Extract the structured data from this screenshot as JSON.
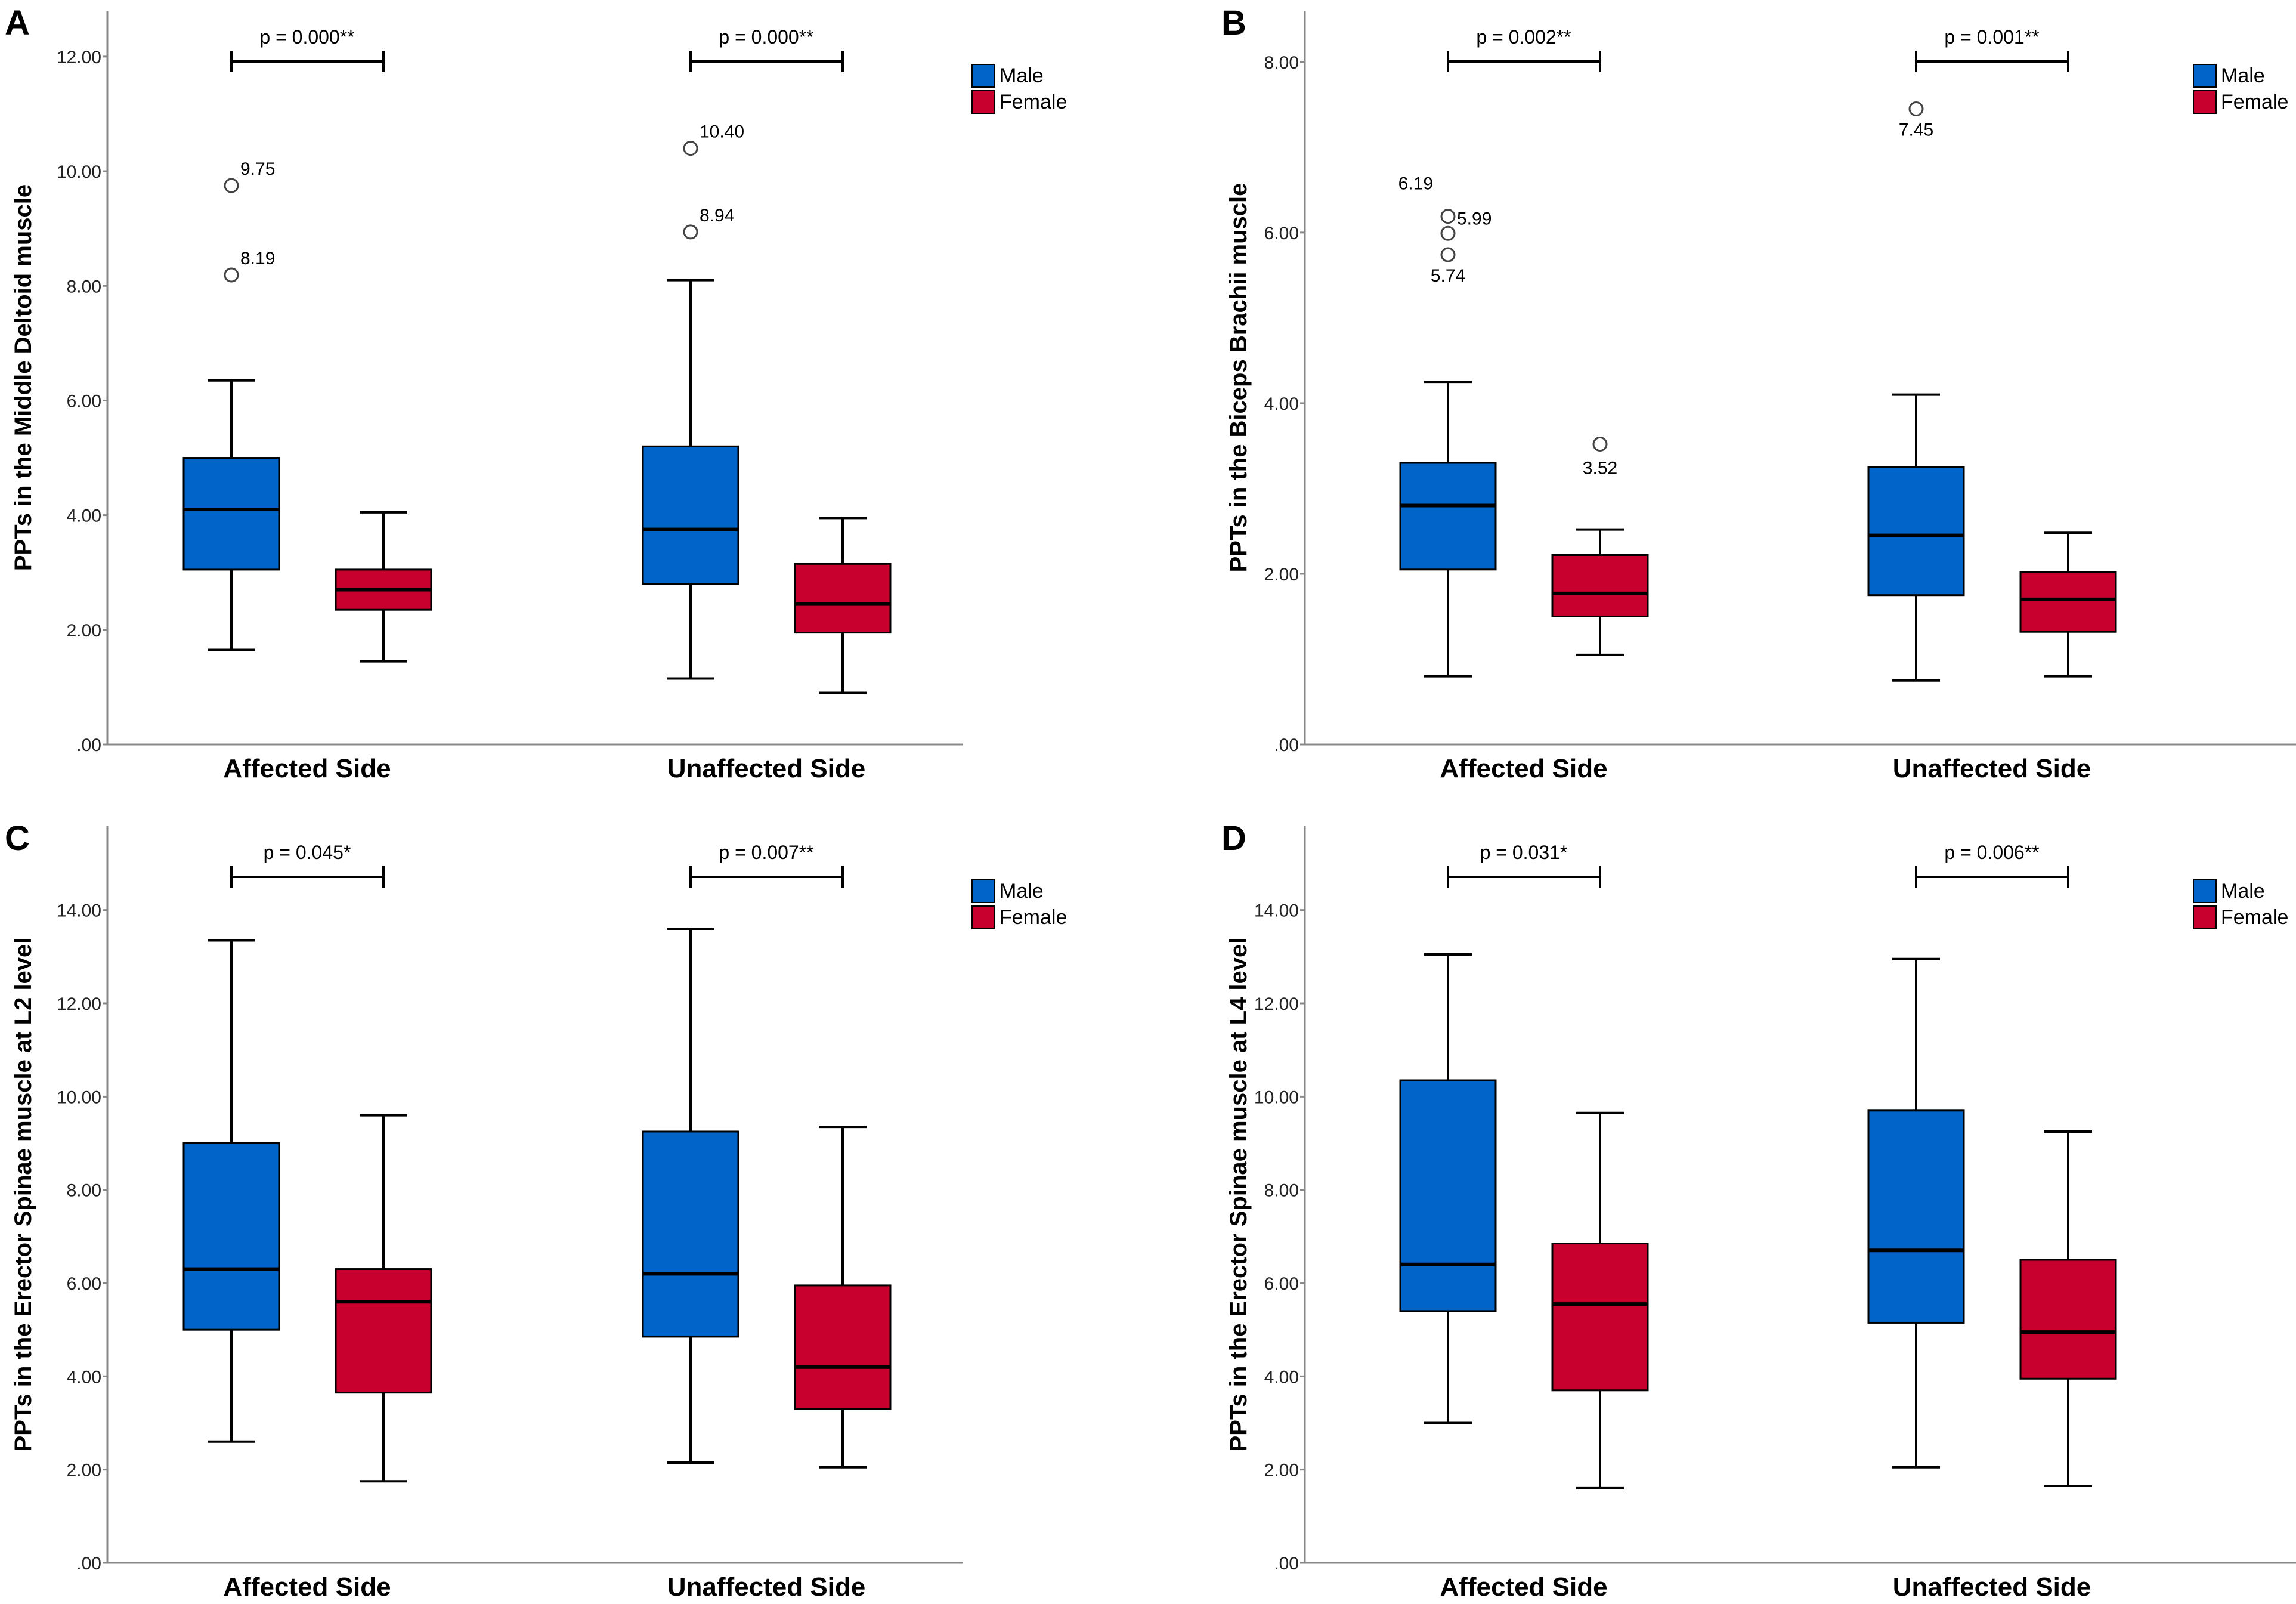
{
  "figure": {
    "legend": {
      "male_label": "Male",
      "female_label": "Female",
      "male_color": "#0064C8",
      "female_color": "#C8002D"
    },
    "group_labels": [
      "Affected Side",
      "Unaffected Side"
    ]
  },
  "chart_data": [
    {
      "type": "boxplot",
      "panel_letter": "A",
      "ylabel": "PPTs in the Middle Deltoid muscle",
      "ylim": [
        0,
        12.8
      ],
      "yticks": [
        0,
        2,
        4,
        6,
        8,
        10,
        12
      ],
      "ytick_labels": [
        ".00",
        "2.00",
        "4.00",
        "6.00",
        "8.00",
        "10.00",
        "12.00"
      ],
      "categories": [
        "Affected Side",
        "Unaffected Side"
      ],
      "series": [
        {
          "name": "Male",
          "boxes": [
            {
              "whisker_low": 1.65,
              "q1": 3.05,
              "median": 4.1,
              "q3": 5.0,
              "whisker_high": 6.35,
              "outliers": [
                9.75,
                8.19
              ],
              "outlier_labels": [
                "9.75",
                "8.19"
              ]
            },
            {
              "whisker_low": 1.15,
              "q1": 2.8,
              "median": 3.75,
              "q3": 5.2,
              "whisker_high": 8.1,
              "outliers": [
                10.4,
                8.94
              ],
              "outlier_labels": [
                "10.40",
                "8.94"
              ]
            }
          ]
        },
        {
          "name": "Female",
          "boxes": [
            {
              "whisker_low": 1.45,
              "q1": 2.35,
              "median": 2.7,
              "q3": 3.05,
              "whisker_high": 4.05,
              "outliers": [],
              "outlier_labels": []
            },
            {
              "whisker_low": 0.9,
              "q1": 1.95,
              "median": 2.45,
              "q3": 3.15,
              "whisker_high": 3.95,
              "outliers": [],
              "outlier_labels": []
            }
          ]
        }
      ],
      "pvalues": [
        "p = 0.000**",
        "p = 0.000**"
      ]
    },
    {
      "type": "boxplot",
      "panel_letter": "B",
      "ylabel": "PPTs in the Biceps Brachii muscle",
      "ylim": [
        0,
        8.6
      ],
      "yticks": [
        0,
        2,
        4,
        6,
        8
      ],
      "ytick_labels": [
        ".00",
        "2.00",
        "4.00",
        "6.00",
        "8.00"
      ],
      "categories": [
        "Affected Side",
        "Unaffected Side"
      ],
      "series": [
        {
          "name": "Male",
          "boxes": [
            {
              "whisker_low": 0.8,
              "q1": 2.05,
              "median": 2.8,
              "q3": 3.3,
              "whisker_high": 4.25,
              "outliers": [
                6.19,
                5.99,
                5.74
              ],
              "outlier_labels": [
                "6.19",
                "5.99",
                "5.74"
              ]
            },
            {
              "whisker_low": 0.75,
              "q1": 1.75,
              "median": 2.45,
              "q3": 3.25,
              "whisker_high": 4.1,
              "outliers": [
                7.45
              ],
              "outlier_labels": [
                "7.45"
              ]
            }
          ]
        },
        {
          "name": "Female",
          "boxes": [
            {
              "whisker_low": 1.05,
              "q1": 1.5,
              "median": 1.77,
              "q3": 2.22,
              "whisker_high": 2.52,
              "outliers": [
                3.52
              ],
              "outlier_labels": [
                "3.52"
              ]
            },
            {
              "whisker_low": 0.8,
              "q1": 1.32,
              "median": 1.7,
              "q3": 2.02,
              "whisker_high": 2.48,
              "outliers": [],
              "outlier_labels": []
            }
          ]
        }
      ],
      "pvalues": [
        "p = 0.002**",
        "p = 0.001**"
      ]
    },
    {
      "type": "boxplot",
      "panel_letter": "C",
      "ylabel": "PPTs in the Erector Spinae muscle at L2 level",
      "ylim": [
        0,
        15.8
      ],
      "yticks": [
        0,
        2,
        4,
        6,
        8,
        10,
        12,
        14
      ],
      "ytick_labels": [
        ".00",
        "2.00",
        "4.00",
        "6.00",
        "8.00",
        "10.00",
        "12.00",
        "14.00"
      ],
      "categories": [
        "Affected Side",
        "Unaffected Side"
      ],
      "series": [
        {
          "name": "Male",
          "boxes": [
            {
              "whisker_low": 2.6,
              "q1": 5.0,
              "median": 6.3,
              "q3": 9.0,
              "whisker_high": 13.35,
              "outliers": [],
              "outlier_labels": []
            },
            {
              "whisker_low": 2.15,
              "q1": 4.85,
              "median": 6.2,
              "q3": 9.25,
              "whisker_high": 13.6,
              "outliers": [],
              "outlier_labels": []
            }
          ]
        },
        {
          "name": "Female",
          "boxes": [
            {
              "whisker_low": 1.75,
              "q1": 3.65,
              "median": 5.6,
              "q3": 6.3,
              "whisker_high": 9.6,
              "outliers": [],
              "outlier_labels": []
            },
            {
              "whisker_low": 2.05,
              "q1": 3.3,
              "median": 4.2,
              "q3": 5.95,
              "whisker_high": 9.35,
              "outliers": [],
              "outlier_labels": []
            }
          ]
        }
      ],
      "pvalues": [
        "p = 0.045*",
        "p = 0.007**"
      ]
    },
    {
      "type": "boxplot",
      "panel_letter": "D",
      "ylabel": "PPTs in the Erector Spinae muscle at L4 level",
      "ylim": [
        0,
        15.8
      ],
      "yticks": [
        0,
        2,
        4,
        6,
        8,
        10,
        12,
        14
      ],
      "ytick_labels": [
        ".00",
        "2.00",
        "4.00",
        "6.00",
        "8.00",
        "10.00",
        "12.00",
        "14.00"
      ],
      "categories": [
        "Affected Side",
        "Unaffected Side"
      ],
      "series": [
        {
          "name": "Male",
          "boxes": [
            {
              "whisker_low": 3.0,
              "q1": 5.4,
              "median": 6.4,
              "q3": 10.35,
              "whisker_high": 13.05,
              "outliers": [],
              "outlier_labels": []
            },
            {
              "whisker_low": 2.05,
              "q1": 5.15,
              "median": 6.7,
              "q3": 9.7,
              "whisker_high": 12.95,
              "outliers": [],
              "outlier_labels": []
            }
          ]
        },
        {
          "name": "Female",
          "boxes": [
            {
              "whisker_low": 1.6,
              "q1": 3.7,
              "median": 5.55,
              "q3": 6.85,
              "whisker_high": 9.65,
              "outliers": [],
              "outlier_labels": []
            },
            {
              "whisker_low": 1.65,
              "q1": 3.95,
              "median": 4.95,
              "q3": 6.5,
              "whisker_high": 9.25,
              "outliers": [],
              "outlier_labels": []
            }
          ]
        }
      ],
      "pvalues": [
        "p = 0.031*",
        "p = 0.006**"
      ]
    }
  ]
}
